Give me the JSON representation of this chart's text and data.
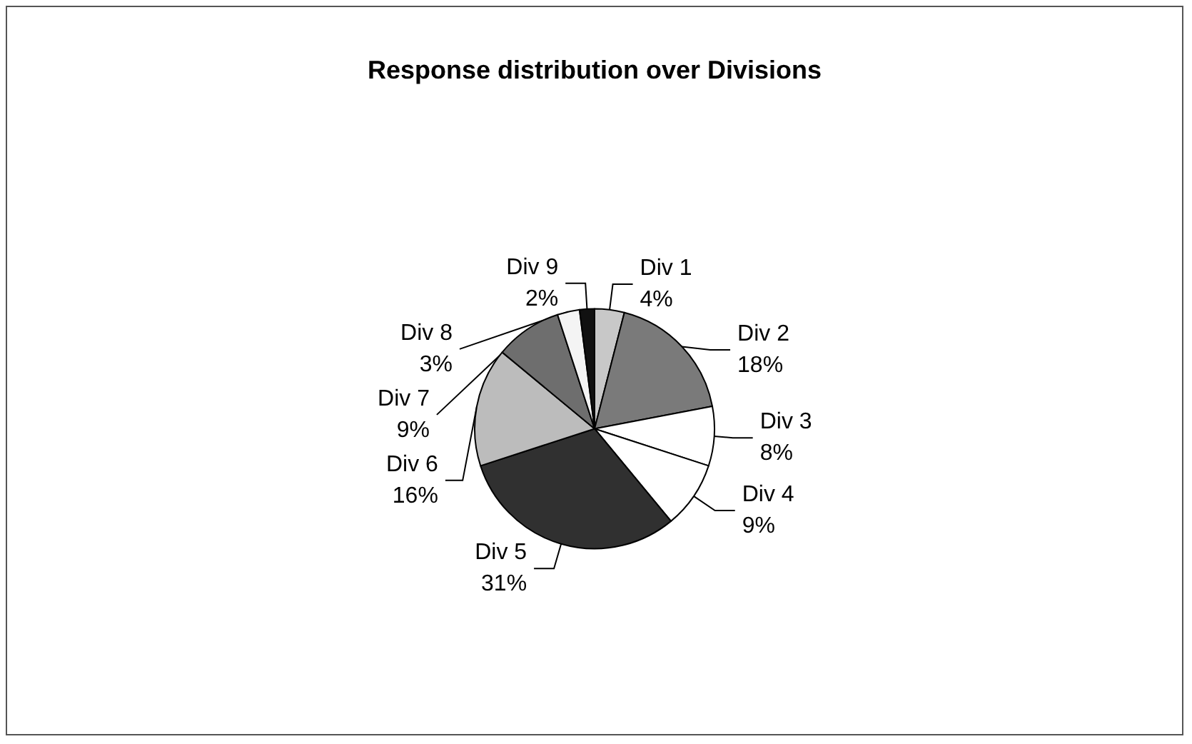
{
  "chart_data": {
    "type": "pie",
    "title": "Response distribution over Divisions",
    "categories": [
      "Div 1",
      "Div 2",
      "Div 3",
      "Div 4",
      "Div 5",
      "Div 6",
      "Div 7",
      "Div 8",
      "Div 9"
    ],
    "values": [
      4,
      18,
      8,
      9,
      31,
      16,
      9,
      3,
      2
    ],
    "value_labels": [
      "4%",
      "18%",
      "8%",
      "9%",
      "31%",
      "16%",
      "9%",
      "3%",
      "2%"
    ],
    "colors": [
      "#c8c8c8",
      "#7a7a7a",
      "#ffffff",
      "#ffffff",
      "#303030",
      "#bcbcbc",
      "#6e6e6e",
      "#f4f4f4",
      "#111111"
    ],
    "legend": false
  }
}
